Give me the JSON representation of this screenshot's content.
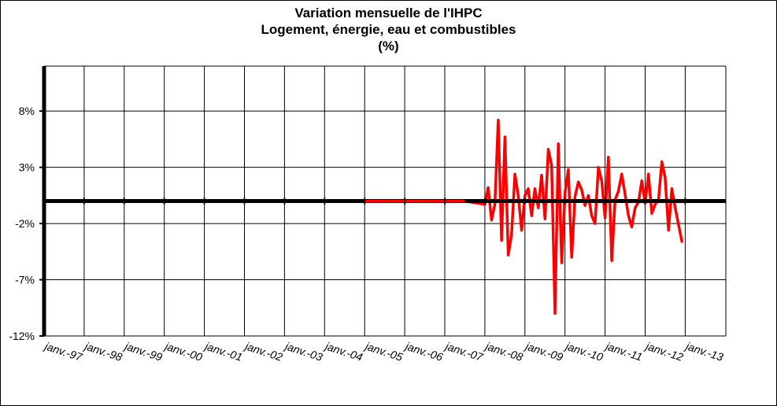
{
  "chart_data": {
    "type": "line",
    "title": "Variation mensuelle de l'IHPC",
    "subtitle": "Logement, énergie, eau et combustibles",
    "unit_label": "(%)",
    "xlabel": "",
    "ylabel": "",
    "ylim": [
      -12,
      12
    ],
    "y_ticks": [
      {
        "value": 8,
        "label": "8%"
      },
      {
        "value": 3,
        "label": "3%"
      },
      {
        "value": -2,
        "label": "-2%"
      },
      {
        "value": -7,
        "label": "-7%"
      },
      {
        "value": -12,
        "label": "-12%"
      }
    ],
    "x_tick_labels": [
      "janv.-97",
      "janv.-98",
      "janv.-99",
      "janv.-00",
      "janv.-01",
      "janv.-02",
      "janv.-03",
      "janv.-04",
      "janv.-05",
      "janv.-06",
      "janv.-07",
      "janv.-08",
      "janv.-09",
      "janv.-10",
      "janv.-11",
      "janv.-12",
      "janv.-13"
    ],
    "grid": true,
    "zero_line": true,
    "series": [
      {
        "color": "#ff0000",
        "x": [
          "2005-01",
          "2005-07",
          "2006-01",
          "2006-07",
          "2007-01",
          "2007-07",
          "2008-01",
          "2008-02",
          "2008-03",
          "2008-04",
          "2008-05",
          "2008-06",
          "2008-07",
          "2008-08",
          "2008-09",
          "2008-10",
          "2008-11",
          "2008-12",
          "2009-01",
          "2009-02",
          "2009-03",
          "2009-04",
          "2009-05",
          "2009-06",
          "2009-07",
          "2009-08",
          "2009-09",
          "2009-10",
          "2009-11",
          "2009-12",
          "2010-01",
          "2010-02",
          "2010-03",
          "2010-04",
          "2010-05",
          "2010-06",
          "2010-07",
          "2010-08",
          "2010-09",
          "2010-10",
          "2010-11",
          "2010-12",
          "2011-01",
          "2011-02",
          "2011-03",
          "2011-04",
          "2011-05",
          "2011-06",
          "2011-07",
          "2011-08",
          "2011-09",
          "2011-10",
          "2011-11",
          "2011-12",
          "2012-01",
          "2012-02",
          "2012-03",
          "2012-04",
          "2012-05",
          "2012-06",
          "2012-07",
          "2012-08",
          "2012-09",
          "2012-10",
          "2012-11",
          "2012-12"
        ],
        "values": [
          0,
          0,
          0,
          0,
          0,
          0,
          -0.3,
          1.2,
          -1.7,
          -0.3,
          7.2,
          -3.5,
          5.7,
          -4.8,
          -3.0,
          2.4,
          0.5,
          -2.6,
          0.5,
          1.1,
          -1.3,
          1.1,
          -0.6,
          2.3,
          -1.6,
          4.6,
          3.2,
          -10.0,
          5.1,
          -5.5,
          0.7,
          2.8,
          -5.0,
          0.4,
          1.7,
          1.0,
          -0.4,
          0.5,
          -1.3,
          -2.0,
          3.0,
          1.8,
          -1.5,
          3.9,
          -5.3,
          0.1,
          0.9,
          2.4,
          0.6,
          -1.3,
          -2.3,
          -0.6,
          -0.1,
          1.8,
          -0.2,
          2.4,
          -1.1,
          -0.3,
          0.1,
          3.5,
          2.1,
          -2.6,
          1.1,
          -0.6,
          -2.1,
          -3.6
        ]
      }
    ]
  }
}
